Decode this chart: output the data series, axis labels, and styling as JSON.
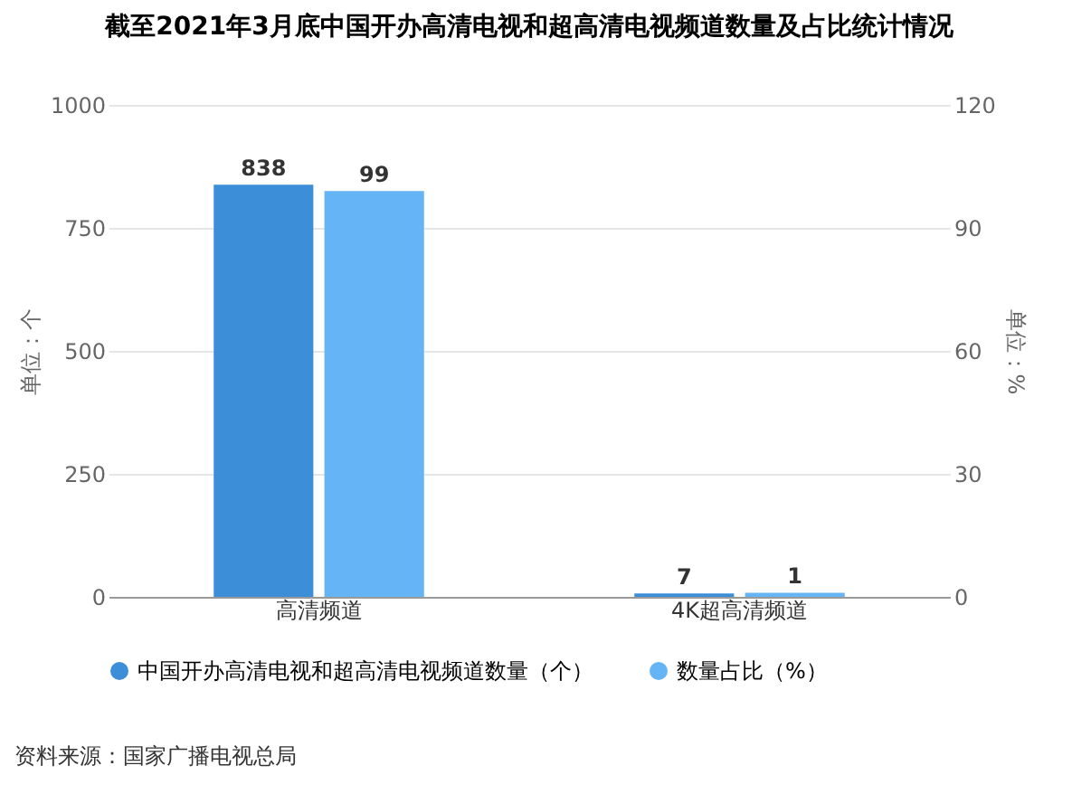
{
  "chart_data": {
    "type": "bar",
    "title": "截至2021年3月底中国开办高清电视和超高清电视频道数量及占比统计情况",
    "categories": [
      "高清频道",
      "4K超高清频道"
    ],
    "series": [
      {
        "name": "中国开办高清电视和超高清电视频道数量（个）",
        "color": "#3d8ed8",
        "values": [
          838,
          7
        ]
      },
      {
        "name": "数量占比（%）",
        "color": "#64b4f6",
        "values": [
          99,
          1
        ],
        "axis": "y2"
      }
    ],
    "ylabel": "单位：个",
    "y2label": "单位：%",
    "ylim": [
      0,
      1000
    ],
    "yticks": [
      0,
      250,
      500,
      750,
      1000
    ],
    "y2lim": [
      0,
      120
    ],
    "y2ticks": [
      0,
      30,
      60,
      90,
      120
    ],
    "grid": "y",
    "legend": "bottom",
    "data_labels": true,
    "annotations": [
      "资料来源：国家广播电视总局"
    ]
  }
}
